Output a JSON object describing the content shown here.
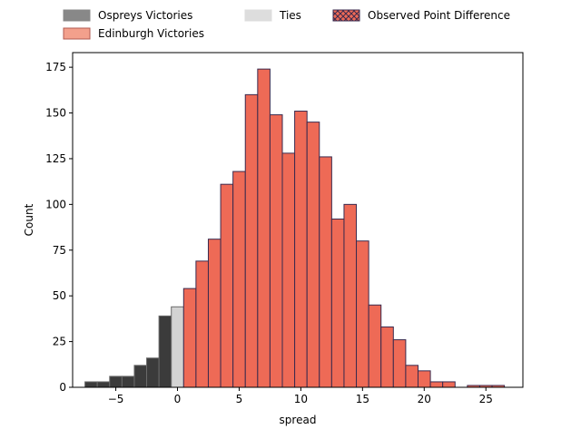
{
  "chart_data": {
    "type": "bar",
    "xlabel": "spread",
    "ylabel": "Count",
    "xlim": [
      -8.5,
      28.0
    ],
    "ylim": [
      0,
      183
    ],
    "x_ticks": [
      -5,
      0,
      5,
      10,
      15,
      20,
      25
    ],
    "x_tick_labels": [
      "−5",
      "0",
      "5",
      "10",
      "15",
      "20",
      "25"
    ],
    "y_ticks": [
      0,
      25,
      50,
      75,
      100,
      125,
      150,
      175
    ],
    "y_tick_labels": [
      "0",
      "25",
      "50",
      "75",
      "100",
      "125",
      "150",
      "175"
    ],
    "grid": false,
    "legend_position": "top",
    "bin_width": 1,
    "legend": [
      {
        "label": "Ospreys Victories",
        "color": "#888888",
        "edge": "#888888",
        "hatch": false
      },
      {
        "label": "Edinburgh Victories",
        "color": "#f3a08c",
        "edge": "#b05a50",
        "hatch": false
      },
      {
        "label": "Ties",
        "color": "#dddddd",
        "edge": "#dddddd",
        "hatch": false
      },
      {
        "label": "Observed Point Difference",
        "color": "#ee6a56",
        "edge": "#3a2a4e",
        "hatch": true
      }
    ],
    "series": [
      {
        "group": "ospreys",
        "color": "#3b3b3b",
        "edge": "#6a6a6a",
        "bins": [
          {
            "left": -7.5,
            "count": 3
          },
          {
            "left": -6.5,
            "count": 3
          },
          {
            "left": -5.5,
            "count": 6
          },
          {
            "left": -4.5,
            "count": 6
          },
          {
            "left": -3.5,
            "count": 12
          },
          {
            "left": -2.5,
            "count": 16
          },
          {
            "left": -1.5,
            "count": 39
          }
        ]
      },
      {
        "group": "ties",
        "color": "#d3d3d3",
        "edge": "#6a6a6a",
        "bins": [
          {
            "left": -0.5,
            "count": 44
          }
        ]
      },
      {
        "group": "edinburgh",
        "color": "#ee6a56",
        "edge": "#3a2a4e",
        "bins": [
          {
            "left": 0.5,
            "count": 54
          },
          {
            "left": 1.5,
            "count": 69
          },
          {
            "left": 2.5,
            "count": 81
          },
          {
            "left": 3.5,
            "count": 111
          },
          {
            "left": 4.5,
            "count": 118
          },
          {
            "left": 5.5,
            "count": 160
          },
          {
            "left": 6.5,
            "count": 174
          },
          {
            "left": 7.5,
            "count": 149
          },
          {
            "left": 8.5,
            "count": 128
          },
          {
            "left": 9.5,
            "count": 151
          },
          {
            "left": 10.5,
            "count": 145
          },
          {
            "left": 11.5,
            "count": 126
          },
          {
            "left": 12.5,
            "count": 92
          },
          {
            "left": 13.5,
            "count": 100
          },
          {
            "left": 14.5,
            "count": 80
          },
          {
            "left": 15.5,
            "count": 45
          },
          {
            "left": 16.5,
            "count": 33
          },
          {
            "left": 17.5,
            "count": 26
          },
          {
            "left": 18.5,
            "count": 12
          },
          {
            "left": 19.5,
            "count": 9
          },
          {
            "left": 20.5,
            "count": 3
          },
          {
            "left": 21.5,
            "count": 3
          },
          {
            "left": 22.5,
            "count": 0
          },
          {
            "left": 23.5,
            "count": 1
          },
          {
            "left": 24.5,
            "count": 1
          },
          {
            "left": 25.5,
            "count": 1
          }
        ]
      }
    ]
  }
}
